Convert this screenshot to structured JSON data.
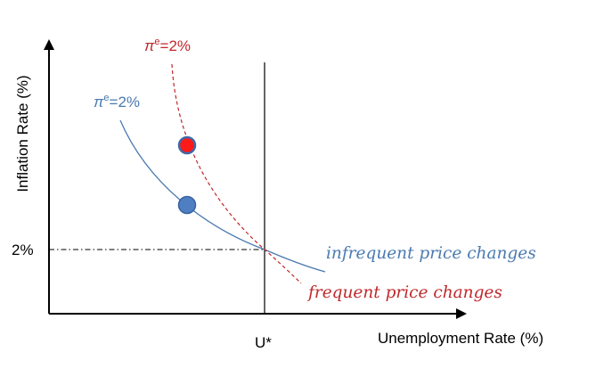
{
  "axes": {
    "y_label": "Inflation Rate (%)",
    "x_label": "Unemployment Rate (%)",
    "y_marker_label": "2%",
    "x_marker_label": "U*"
  },
  "curves": {
    "infrequent": {
      "expectation_symbol": "π",
      "expectation_superscript": "e",
      "expectation_value": "=2%",
      "description": "infrequent price changes",
      "color": "#4a7ab0"
    },
    "frequent": {
      "expectation_symbol": "π",
      "expectation_superscript": "e",
      "expectation_value": "=2%",
      "description": "frequent price changes",
      "color": "#c0282c"
    }
  },
  "markers": {
    "upper_point_fill": "#ff1a1a",
    "upper_point_stroke": "#3f68a8",
    "lower_point_fill": "#4f7fc2",
    "lower_point_stroke": "#3a62a0"
  },
  "axis_color": "#000000"
}
